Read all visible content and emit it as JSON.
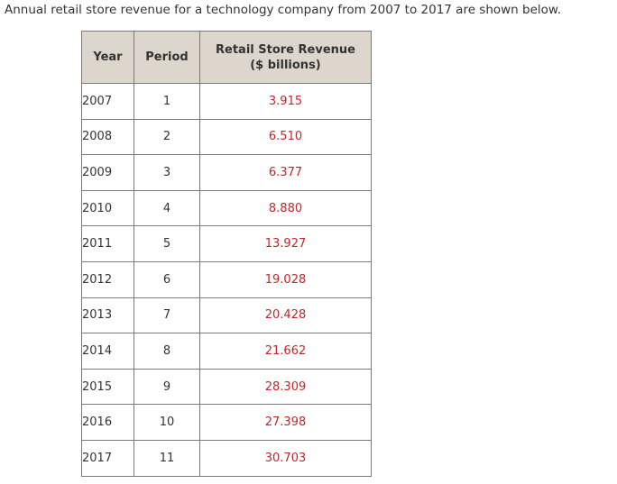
{
  "intro": "Annual retail store revenue for a technology company from 2007 to 2017 are shown below.",
  "table": {
    "headers": {
      "year": "Year",
      "period": "Period",
      "revenue_line1": "Retail Store Revenue",
      "revenue_line2": "($ billions)"
    },
    "rows": [
      {
        "year": "2007",
        "period": "1",
        "revenue": "3.915"
      },
      {
        "year": "2008",
        "period": "2",
        "revenue": "6.510"
      },
      {
        "year": "2009",
        "period": "3",
        "revenue": "6.377"
      },
      {
        "year": "2010",
        "period": "4",
        "revenue": "8.880"
      },
      {
        "year": "2011",
        "period": "5",
        "revenue": "13.927"
      },
      {
        "year": "2012",
        "period": "6",
        "revenue": "19.028"
      },
      {
        "year": "2013",
        "period": "7",
        "revenue": "20.428"
      },
      {
        "year": "2014",
        "period": "8",
        "revenue": "21.662"
      },
      {
        "year": "2015",
        "period": "9",
        "revenue": "28.309"
      },
      {
        "year": "2016",
        "period": "10",
        "revenue": "27.398"
      },
      {
        "year": "2017",
        "period": "11",
        "revenue": "30.703"
      }
    ],
    "revenue_color": "#c0272d",
    "header_background": "#dcd6cc"
  }
}
